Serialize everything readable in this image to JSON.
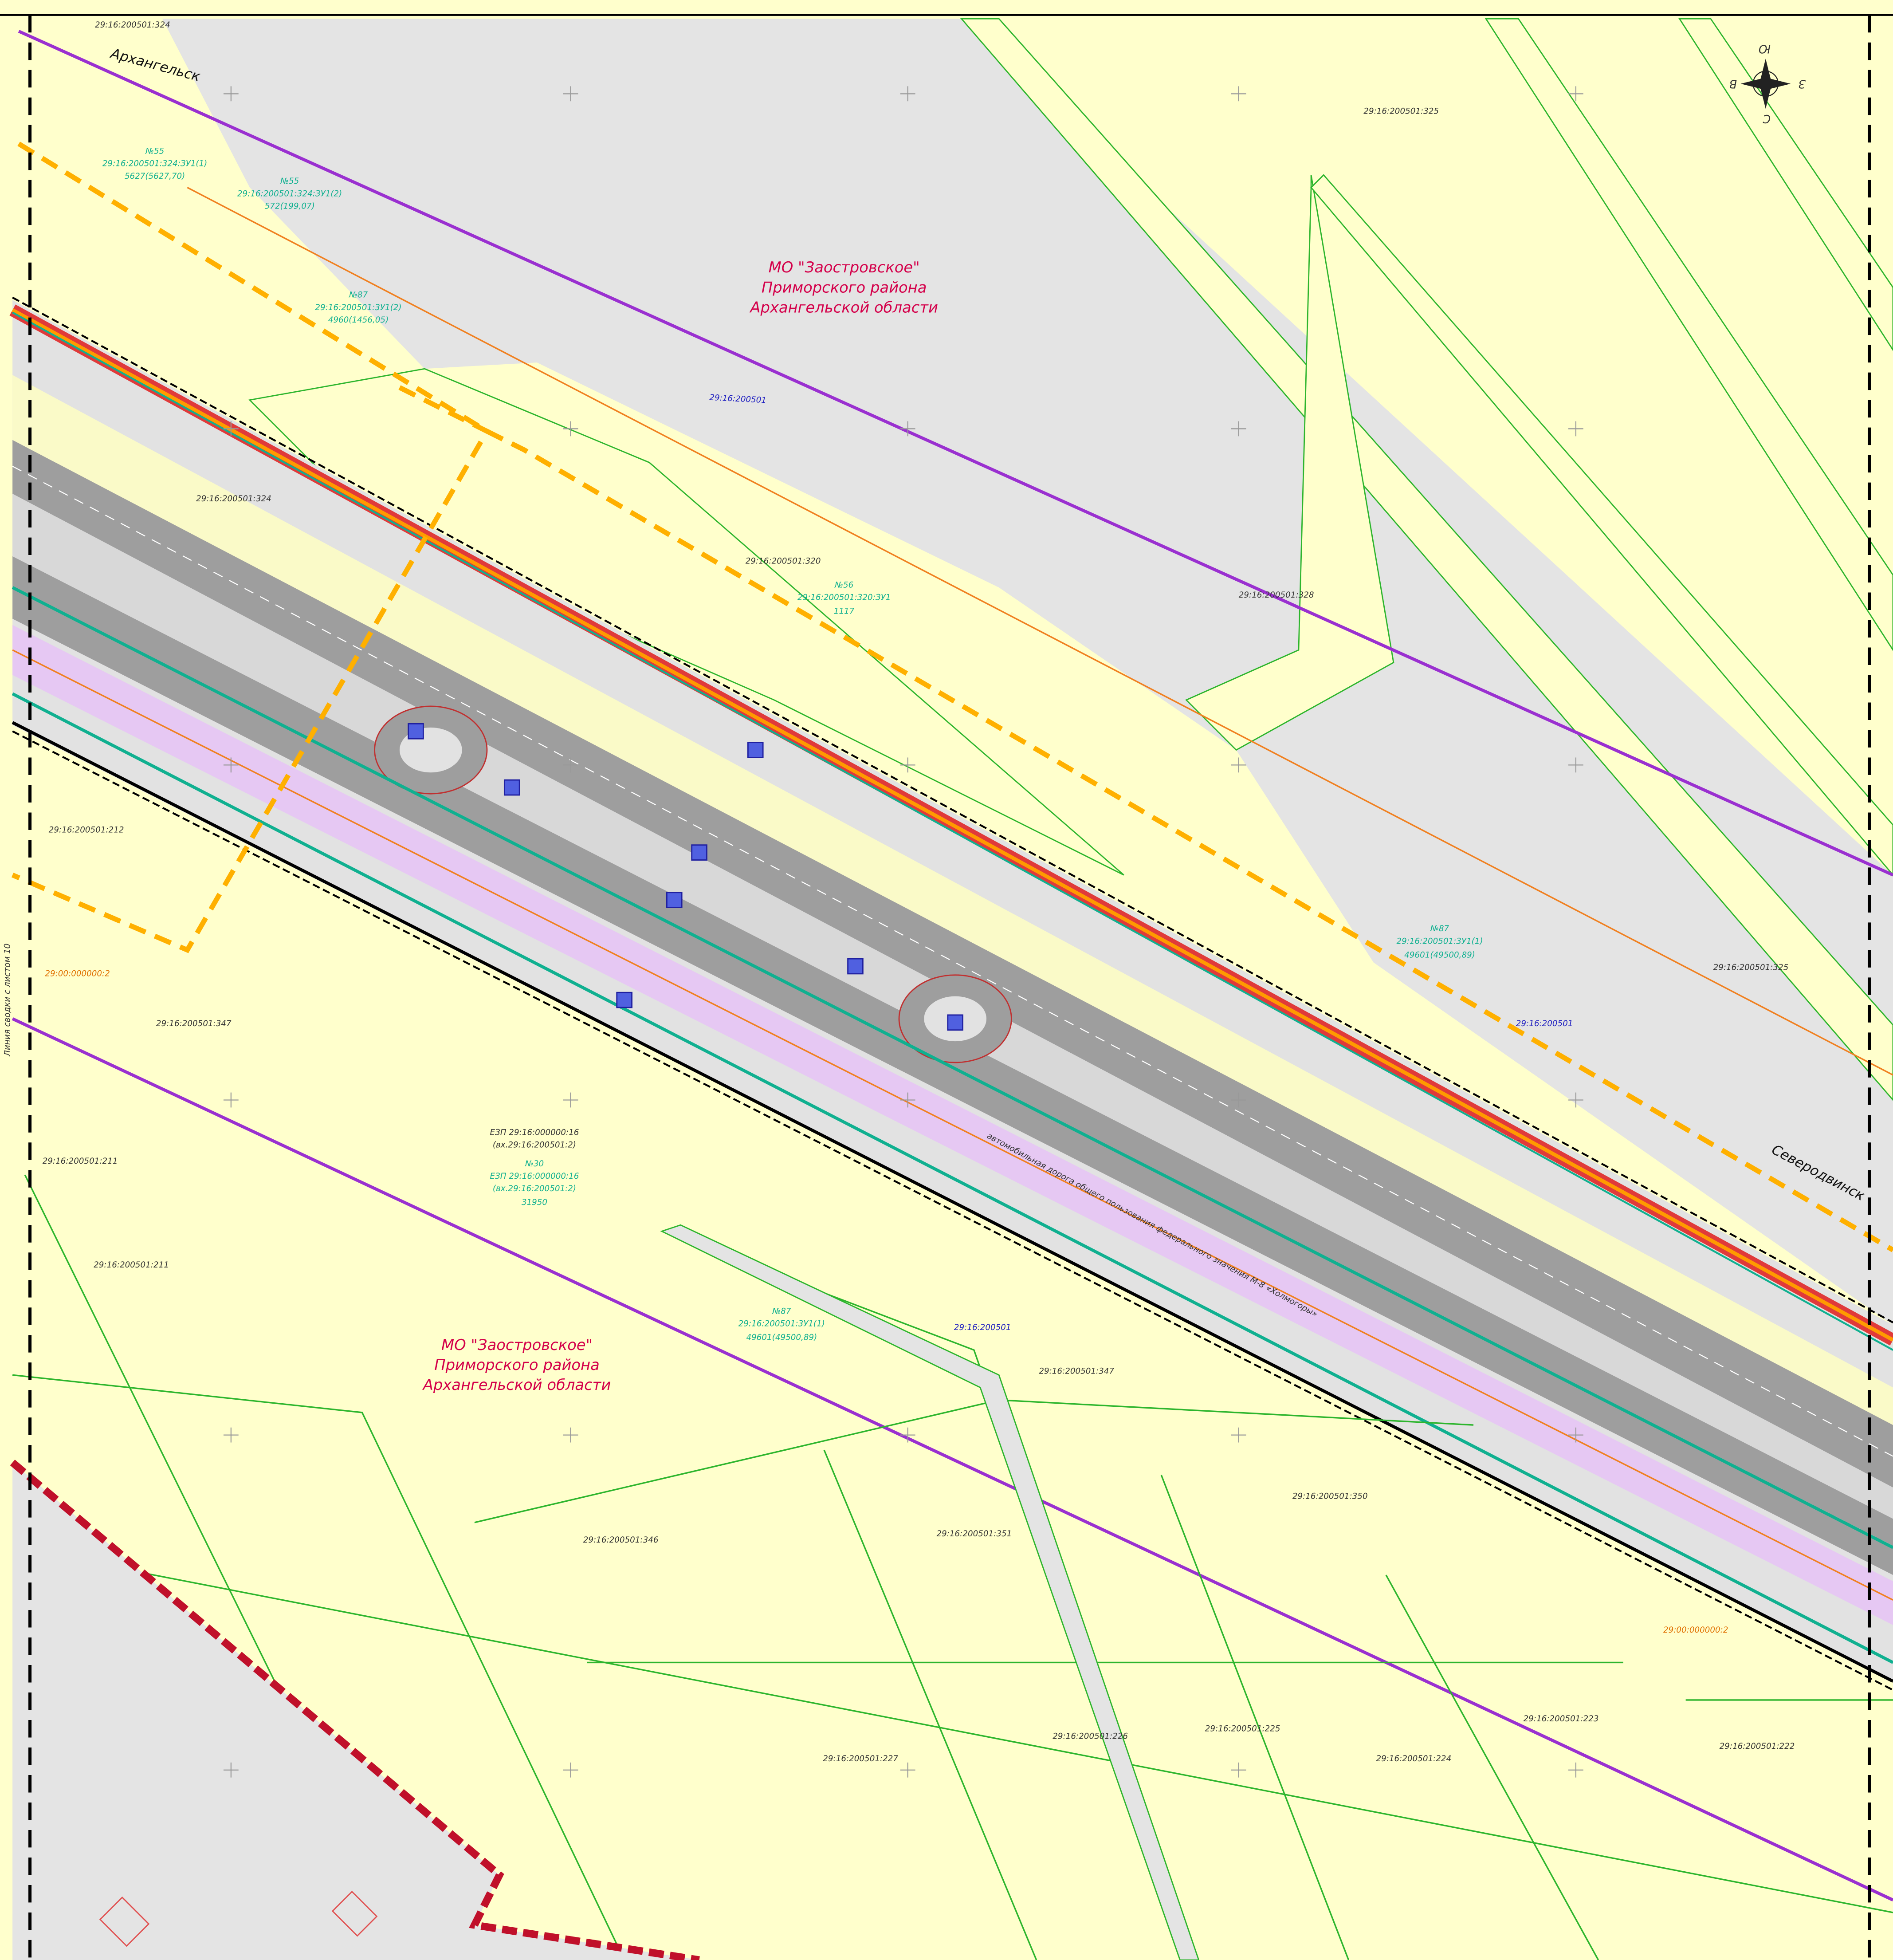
{
  "directions": [
    "Архангельск",
    "Северодвинск"
  ],
  "municipalities": [
    [
      "МО \"Заостровское\"",
      "Приморского района",
      "Архангельской области"
    ],
    [
      "МО \"Заостровское\"",
      "Приморского района",
      "Архангельской области"
    ]
  ],
  "parcels": [
    "29:16:200501:324",
    "29:16:200501:325",
    "29:16:200501:324",
    "29:16:200501:320",
    "29:16:200501:328",
    "29:16:200501:325",
    "29:16:200501:212",
    "29:16:200501:347",
    "29:16:200501:211",
    "29:16:200501:211",
    "29:16:200501:347",
    "29:16:200501:346",
    "29:16:200501:351",
    "29:16:200501:350",
    "29:16:200501:227",
    "29:16:200501:226",
    "29:16:200501:225",
    "29:16:200501:224",
    "29:16:200501:223",
    "29:16:200501:222"
  ],
  "quarters": [
    "29:16:200501",
    "29:16:200501",
    "29:16:200501"
  ],
  "zones": [
    "29:00:000000:2",
    "29:00:000000:2"
  ],
  "notes": [
    [
      "№55",
      "29:16:200501:324:ЗУ1(1)",
      "5627(5627,70)"
    ],
    [
      "№55",
      "29:16:200501:324:ЗУ1(2)",
      "572(199,07)"
    ],
    [
      "№87",
      "29:16:200501:3У1(2)",
      "4960(1456,05)"
    ],
    [
      "№56",
      "29:16:200501:320:ЗУ1",
      "1117"
    ],
    [
      "№87",
      "29:16:200501:3У1(1)",
      "49601(49500,89)"
    ],
    [
      "ЕЗП 29:16:000000:16",
      "(вх.29:16:200501:2)"
    ],
    [
      "№30",
      "ЕЗП 29:16:000000:16",
      "(вх.29:16:200501:2)",
      "31950"
    ],
    [
      "№87",
      "29:16:200501:3У1(1)",
      "49601(49500,89)"
    ]
  ],
  "road": "автомобильная дорога общего пользования федерального значения М-8 «Холмогоры»",
  "margin": "Линия сводки с листом 10",
  "compass": [
    "Ю",
    "З",
    "С",
    "В"
  ]
}
